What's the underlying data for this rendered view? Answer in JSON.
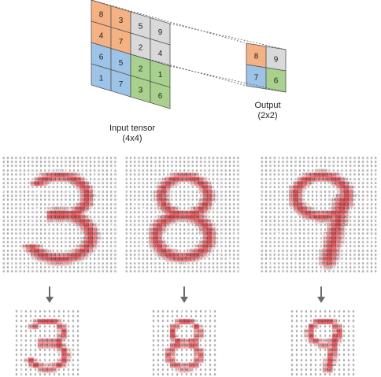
{
  "diagram": {
    "input_label_line1": "Input tensor",
    "input_label_line2": "(4x4)",
    "output_label_line1": "Output",
    "output_label_line2": "(2x2)",
    "input_values": [
      [
        "8",
        "3",
        "5",
        "9"
      ],
      [
        "4",
        "7",
        "2",
        "4"
      ],
      [
        "6",
        "5",
        "2",
        "1"
      ],
      [
        "1",
        "7",
        "3",
        "6"
      ]
    ],
    "input_quadrant_colors": [
      "#f4b183",
      "#d9d9d9",
      "#9dc3e6",
      "#a9d18e"
    ],
    "output_values": [
      [
        "8",
        "9"
      ],
      [
        "7",
        "6"
      ]
    ],
    "output_colors": [
      "#f4b183",
      "#d9d9d9",
      "#9dc3e6",
      "#a9d18e"
    ]
  },
  "panels": {
    "digits": [
      "3",
      "8",
      "9"
    ],
    "highlight_color": "#e8434a",
    "cell_text_color": "#333333"
  }
}
